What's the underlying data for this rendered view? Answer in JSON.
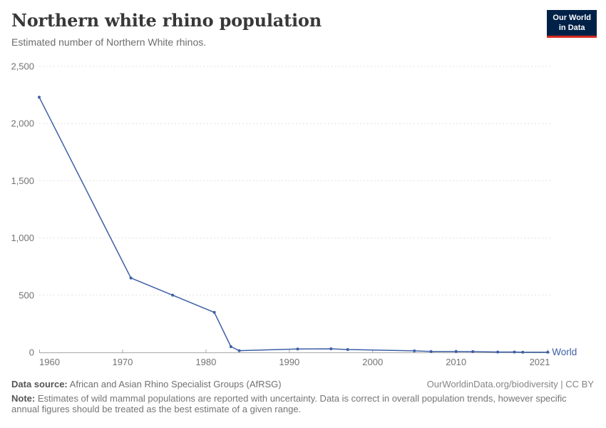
{
  "header": {
    "title": "Northern white rhino population",
    "subtitle": "Estimated number of Northern White rhinos.",
    "logo": {
      "line1": "Our World",
      "line2": "in Data",
      "bg_color": "#002147",
      "accent_color": "#d42b21"
    }
  },
  "chart_data": {
    "type": "line",
    "title": "Northern white rhino population",
    "subtitle": "Estimated number of Northern White rhinos.",
    "xlabel": "",
    "ylabel": "",
    "xlim": [
      1960,
      2021
    ],
    "ylim": [
      0,
      2500
    ],
    "grid": "horizontal-dashed",
    "legend": "end-of-line-label",
    "series": [
      {
        "name": "World",
        "color": "#3d5fa5",
        "x": [
          1960,
          1971,
          1976,
          1981,
          1983,
          1984,
          1991,
          1995,
          1997,
          2005,
          2007,
          2010,
          2012,
          2015,
          2017,
          2018,
          2021
        ],
        "values": [
          2230,
          650,
          500,
          350,
          50,
          15,
          30,
          31,
          25,
          13,
          8,
          8,
          7,
          3,
          3,
          2,
          2
        ]
      }
    ],
    "x_ticks": [
      {
        "value": 1960,
        "label": "1960"
      },
      {
        "value": 1970,
        "label": "1970"
      },
      {
        "value": 1980,
        "label": "1980"
      },
      {
        "value": 1990,
        "label": "1990"
      },
      {
        "value": 2000,
        "label": "2000"
      },
      {
        "value": 2010,
        "label": "2010"
      },
      {
        "value": 2021,
        "label": "2021"
      }
    ],
    "y_ticks": [
      {
        "value": 0,
        "label": "0"
      },
      {
        "value": 500,
        "label": "500"
      },
      {
        "value": 1000,
        "label": "1,000"
      },
      {
        "value": 1500,
        "label": "1,500"
      },
      {
        "value": 2000,
        "label": "2,000"
      },
      {
        "value": 2500,
        "label": "2,500"
      }
    ]
  },
  "colors": {
    "line": "#3d5fa5",
    "grid": "#e0e0e0",
    "axis": "#a8a8a8",
    "tick_label": "#737373"
  },
  "footer": {
    "datasource_label": "Data source:",
    "datasource_text": "African and Asian Rhino Specialist Groups (AfRSG)",
    "link_text": "OurWorldinData.org/biodiversity | CC BY",
    "note_label": "Note:",
    "note_text": "Estimates of wild mammal populations are reported with uncertainty. Data is correct in overall population trends, however specific annual figures should be treated as the best estimate of a given range."
  }
}
